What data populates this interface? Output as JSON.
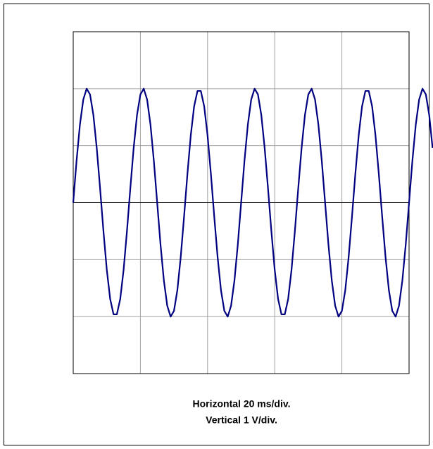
{
  "chart_data": {
    "type": "line",
    "x_label": "Horizontal  20 ms/div.",
    "y_label": "Vertical 1 V/div.",
    "x": [
      0,
      1,
      2,
      3,
      4,
      5,
      6,
      7,
      8,
      9,
      10,
      11,
      12,
      13,
      14,
      15,
      16,
      17,
      18,
      19,
      20,
      21,
      22,
      23,
      24,
      25,
      26,
      27,
      28,
      29,
      30,
      31,
      32,
      33,
      34,
      35,
      36,
      37,
      38,
      39,
      40,
      41,
      42,
      43,
      44,
      45,
      46,
      47,
      48,
      49,
      50,
      51,
      52,
      53,
      54,
      55,
      56,
      57,
      58,
      59,
      60,
      61,
      62,
      63,
      64,
      65,
      66,
      67,
      68,
      69,
      70,
      71,
      72,
      73,
      74,
      75,
      76,
      77,
      78,
      79,
      80,
      81,
      82,
      83,
      84,
      85,
      86,
      87,
      88,
      89,
      90,
      91,
      92,
      93,
      94,
      95,
      96,
      97,
      98,
      99,
      100,
      101,
      102,
      103,
      104,
      105,
      106,
      107
    ],
    "values": [
      0,
      0.74,
      1.37,
      1.81,
      2,
      1.9,
      1.54,
      0.96,
      0.25,
      -0.5,
      -1.18,
      -1.69,
      -1.96,
      -1.96,
      -1.69,
      -1.18,
      -0.5,
      0.25,
      0.96,
      1.54,
      1.9,
      2,
      1.81,
      1.37,
      0.74,
      0,
      -0.74,
      -1.37,
      -1.81,
      -2,
      -1.9,
      -1.54,
      -0.96,
      -0.25,
      0.5,
      1.18,
      1.69,
      1.96,
      1.96,
      1.69,
      1.18,
      0.5,
      -0.25,
      -0.96,
      -1.54,
      -1.9,
      -2,
      -1.81,
      -1.37,
      -0.74,
      0,
      0.74,
      1.37,
      1.81,
      2,
      1.9,
      1.54,
      0.96,
      0.25,
      -0.5,
      -1.18,
      -1.69,
      -1.96,
      -1.96,
      -1.69,
      -1.18,
      -0.5,
      0.25,
      0.96,
      1.54,
      1.9,
      2,
      1.81,
      1.37,
      0.74,
      0,
      -0.74,
      -1.37,
      -1.81,
      -2,
      -1.9,
      -1.54,
      -0.96,
      -0.25,
      0.5,
      1.18,
      1.69,
      1.96,
      1.96,
      1.69,
      1.18,
      0.5,
      -0.25,
      -0.96,
      -1.54,
      -1.9,
      -2,
      -1.81,
      -1.37,
      -0.74,
      0,
      0.74,
      1.37,
      1.81,
      2,
      1.9,
      1.54,
      0.96
    ],
    "color": "#000080",
    "xlim": [
      0,
      100
    ],
    "xticks": [
      0,
      20,
      40,
      60,
      80,
      100
    ],
    "ylim": [
      -3,
      3
    ],
    "yticks": [
      -3,
      -2,
      -1,
      0,
      1,
      2,
      3
    ],
    "grid": true
  }
}
